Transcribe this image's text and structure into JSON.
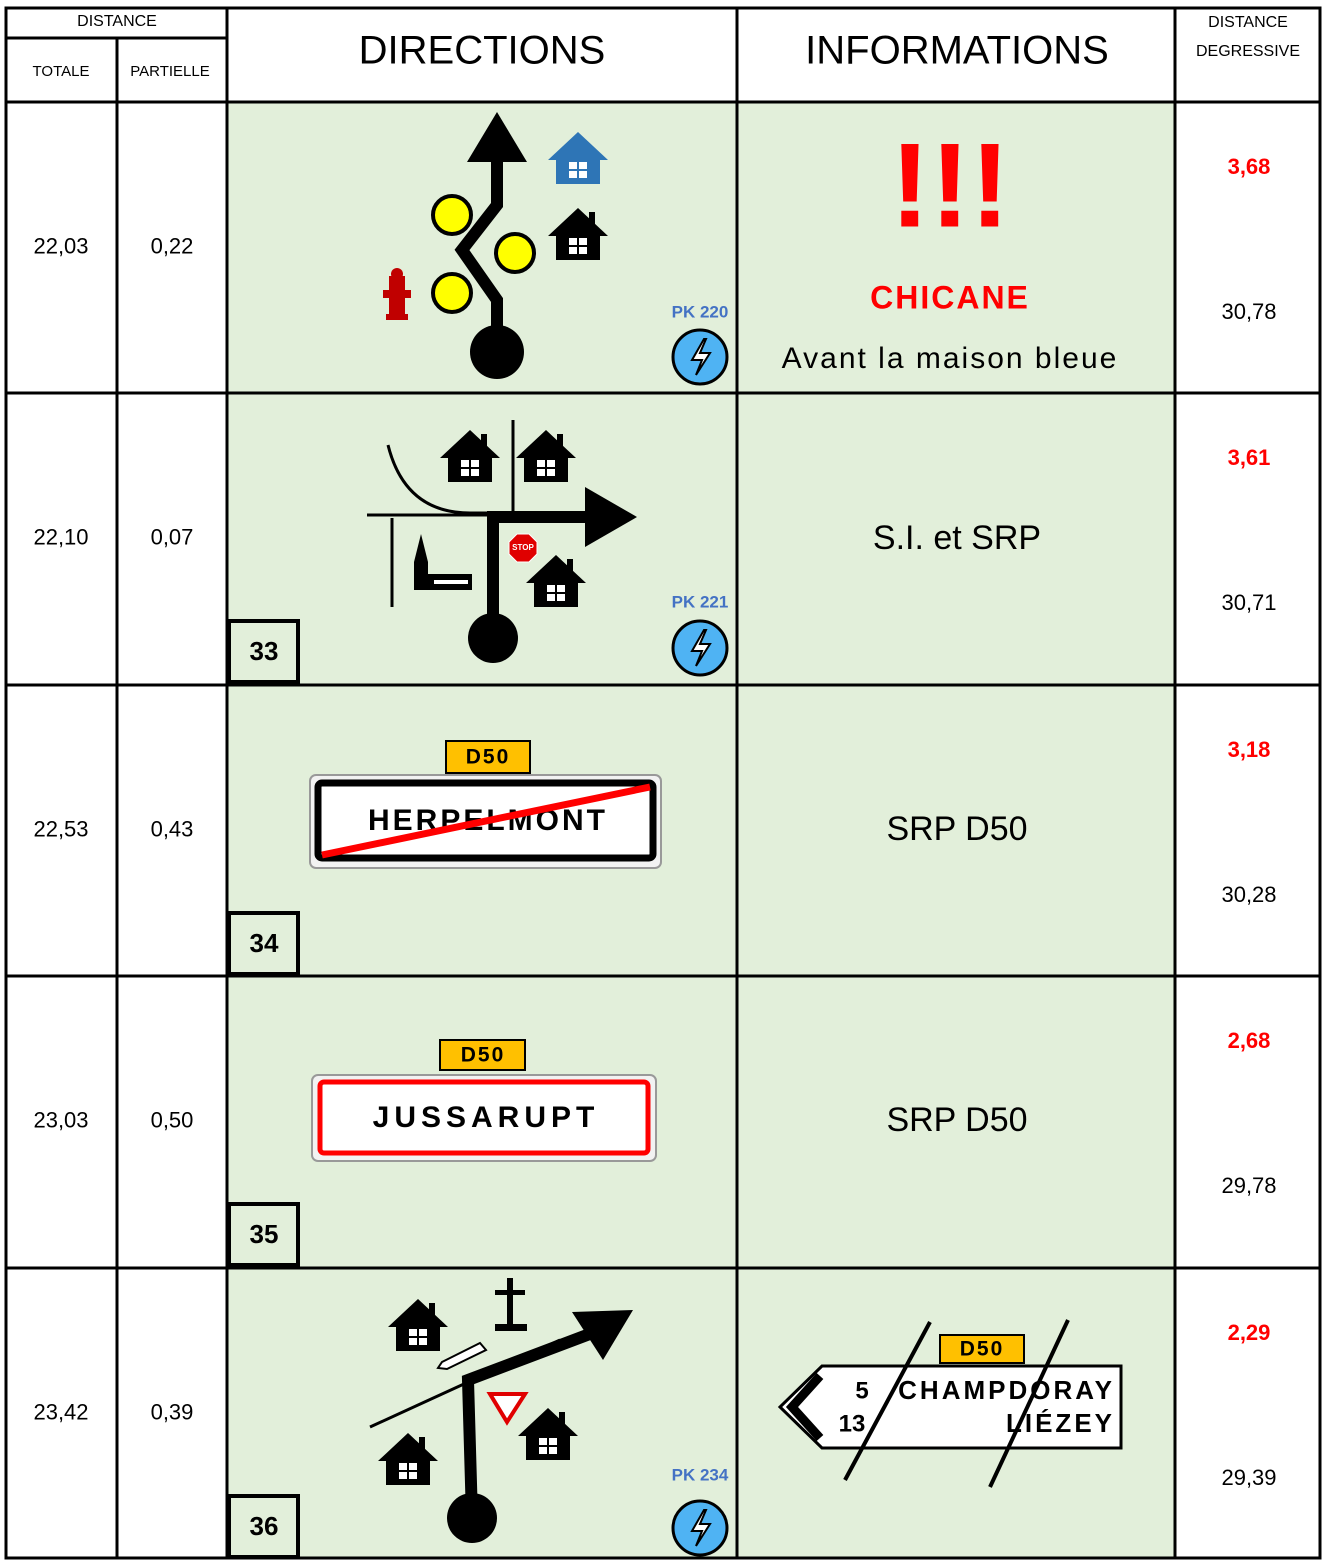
{
  "header": {
    "distance": "DISTANCE",
    "totale": "TOTALE",
    "partielle": "PARTIELLE",
    "directions": "DIRECTIONS",
    "informations": "INFORMATIONS",
    "degressive": [
      "DISTANCE",
      "DEGRESSIVE"
    ]
  },
  "rows": [
    {
      "totale": "22,03",
      "partielle": "0,22",
      "pk": "PK 220",
      "info": {
        "alert": "!!!",
        "title": "CHICANE",
        "text": "Avant la maison bleue"
      },
      "degressive": [
        "3,68",
        "30,78"
      ]
    },
    {
      "totale": "22,10",
      "partielle": "0,07",
      "number": "33",
      "pk": "PK 221",
      "stop": "STOP",
      "info": {
        "text": "S.I. et SRP"
      },
      "degressive": [
        "3,61",
        "30,71"
      ]
    },
    {
      "totale": "22,53",
      "partielle": "0,43",
      "number": "34",
      "road": "D50",
      "town_exit": "HERPELMONT",
      "info": {
        "text": "SRP D50"
      },
      "degressive": [
        "3,18",
        "30,28"
      ]
    },
    {
      "totale": "23,03",
      "partielle": "0,50",
      "number": "35",
      "road": "D50",
      "town_entry": "JUSSARUPT",
      "info": {
        "text": "SRP D50"
      },
      "degressive": [
        "2,68",
        "29,78"
      ]
    },
    {
      "totale": "23,42",
      "partielle": "0,39",
      "number": "36",
      "pk": "PK 234",
      "info": {
        "sign": {
          "road": "D50",
          "lines": [
            {
              "distance": "5",
              "place": "CHAMPDORAY"
            },
            {
              "distance": "13",
              "place": "LIÉZEY"
            }
          ]
        }
      },
      "degressive": [
        "2,29",
        "29,39"
      ]
    }
  ]
}
